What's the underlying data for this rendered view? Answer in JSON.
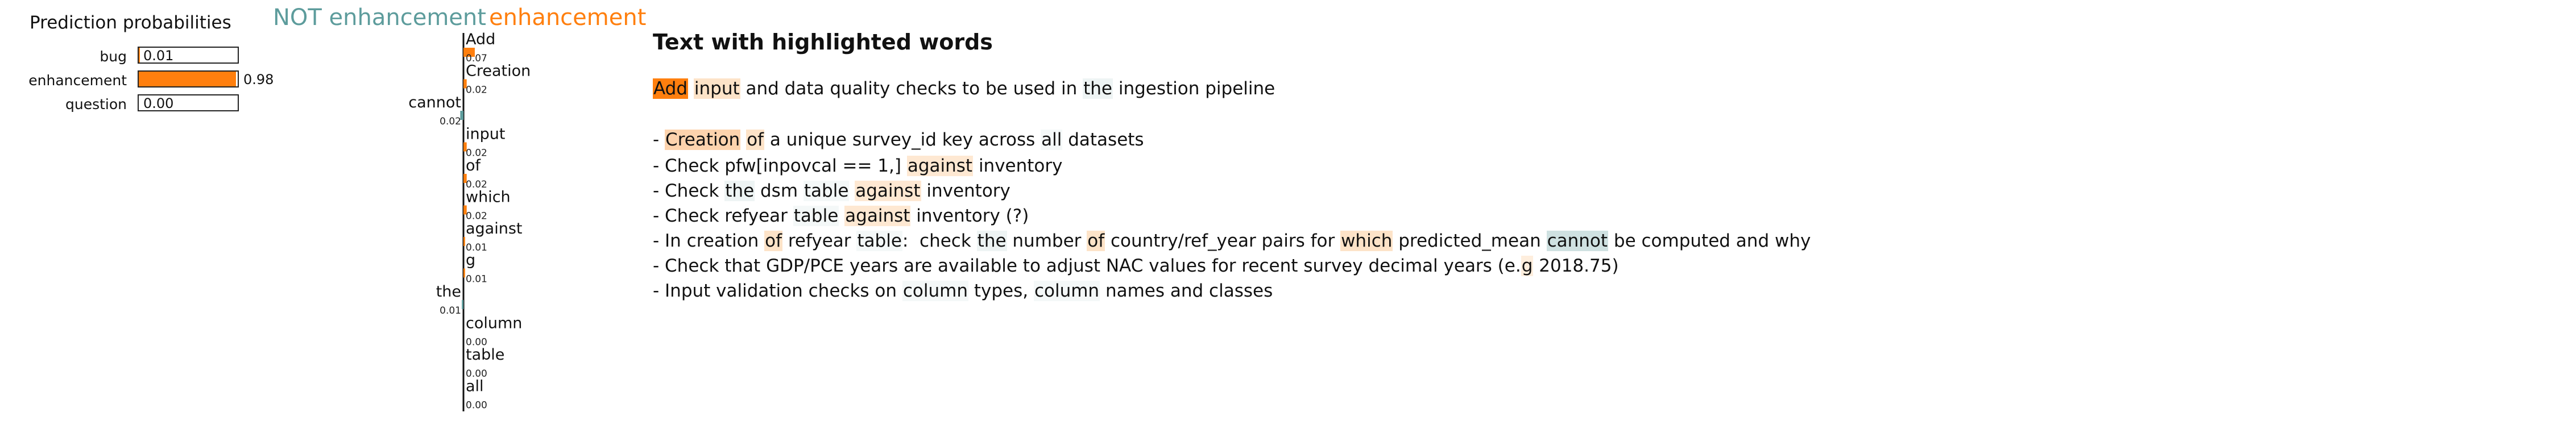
{
  "probabilities": {
    "title": "Prediction probabilities",
    "bar_color": "#ff7f0e",
    "items": [
      {
        "label": "bug",
        "value": 0.01,
        "text": "0.01"
      },
      {
        "label": "enhancement",
        "value": 0.98,
        "text": "0.98"
      },
      {
        "label": "question",
        "value": 0.0,
        "text": "0.00"
      }
    ]
  },
  "legend": {
    "negative": "NOT enhancement",
    "positive": "enhancement",
    "negative_color": "#5d9c9c",
    "positive_color": "#ff7f0e"
  },
  "chart_data": {
    "type": "bar",
    "categories": [
      "Add",
      "Creation",
      "cannot",
      "input",
      "of",
      "which",
      "against",
      "g",
      "the",
      "column",
      "table",
      "all"
    ],
    "values": [
      0.07,
      0.02,
      -0.02,
      0.02,
      0.02,
      0.02,
      0.01,
      0.01,
      -0.01,
      -0.0,
      -0.0,
      -0.0
    ],
    "value_labels": [
      "0.07",
      "0.02",
      "0.02",
      "0.02",
      "0.02",
      "0.02",
      "0.01",
      "0.01",
      "0.01",
      "0.00",
      "0.00",
      "0.00"
    ],
    "legend_placement": "top"
  },
  "text_panel": {
    "title": "Text with highlighted words",
    "lines": [
      [
        {
          "t": "Add",
          "h": "#ff7f0e"
        },
        {
          "t": " "
        },
        {
          "t": "input",
          "h": "#fde3c8"
        },
        {
          "t": " and data quality checks to be used in "
        },
        {
          "t": "the",
          "h": "#eef4f4"
        },
        {
          "t": " ingestion pipeline"
        }
      ],
      [],
      [
        {
          "t": "- "
        },
        {
          "t": "Creation",
          "h": "#fdd3ad"
        },
        {
          "t": " "
        },
        {
          "t": "of",
          "h": "#fde3c8"
        },
        {
          "t": " a unique survey_id key across "
        },
        {
          "t": "all",
          "h": "#f4f8f8"
        },
        {
          "t": " datasets"
        }
      ],
      [
        {
          "t": "- Check pfw[inpovcal == 1,] "
        },
        {
          "t": "against",
          "h": "#fee8d2"
        },
        {
          "t": " inventory"
        }
      ],
      [
        {
          "t": "- Check "
        },
        {
          "t": "the",
          "h": "#eef4f4"
        },
        {
          "t": " dsm "
        },
        {
          "t": "table",
          "h": "#f4f8f8"
        },
        {
          "t": " "
        },
        {
          "t": "against",
          "h": "#fee8d2"
        },
        {
          "t": " inventory"
        }
      ],
      [
        {
          "t": "- Check refyear "
        },
        {
          "t": "table",
          "h": "#f4f8f8"
        },
        {
          "t": " "
        },
        {
          "t": "against",
          "h": "#fee8d2"
        },
        {
          "t": " inventory (?)"
        }
      ],
      [
        {
          "t": "- In creation "
        },
        {
          "t": "of",
          "h": "#fde3c8"
        },
        {
          "t": " refyear "
        },
        {
          "t": "table",
          "h": "#f4f8f8"
        },
        {
          "t": ":  check "
        },
        {
          "t": "the",
          "h": "#eef4f4"
        },
        {
          "t": " number "
        },
        {
          "t": "of",
          "h": "#fde3c8"
        },
        {
          "t": " country/ref_year pairs for "
        },
        {
          "t": "which",
          "h": "#fde3c8"
        },
        {
          "t": " predicted_mean "
        },
        {
          "t": "cannot",
          "h": "#cfe1e1"
        },
        {
          "t": " be computed and why"
        }
      ],
      [
        {
          "t": "- Check that GDP/PCE years are available to adjust NAC values for recent survey decimal years (e."
        },
        {
          "t": "g",
          "h": "#feeedd"
        },
        {
          "t": " 2018.75)"
        }
      ],
      [
        {
          "t": "- Input validation checks on "
        },
        {
          "t": "column",
          "h": "#f4f8f8"
        },
        {
          "t": " types, "
        },
        {
          "t": "column",
          "h": "#f4f8f8"
        },
        {
          "t": " names and classes"
        }
      ]
    ]
  }
}
